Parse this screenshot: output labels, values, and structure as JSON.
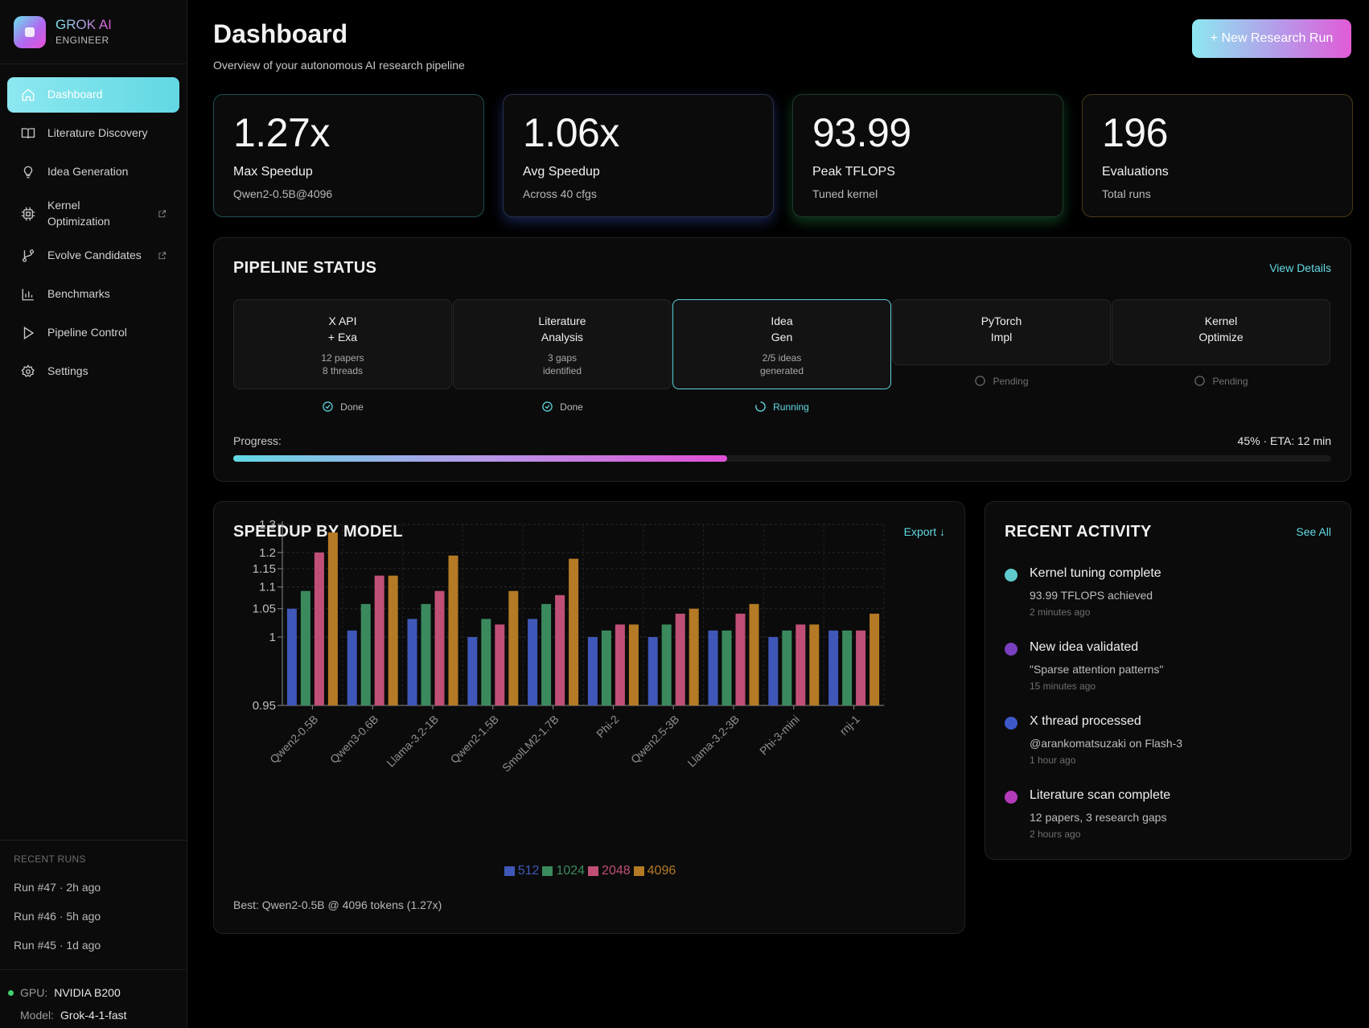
{
  "brand": {
    "title": "GROK AI",
    "subtitle": "ENGINEER"
  },
  "nav": [
    {
      "label": "Dashboard",
      "icon": "home-icon",
      "active": true
    },
    {
      "label": "Literature Discovery",
      "icon": "book-icon"
    },
    {
      "label": "Idea Generation",
      "icon": "lightbulb-icon"
    },
    {
      "label": "Kernel Optimization",
      "icon": "chip-icon",
      "external": true
    },
    {
      "label": "Evolve Candidates",
      "icon": "git-branch-icon",
      "external": true
    },
    {
      "label": "Benchmarks",
      "icon": "bar-chart-icon"
    },
    {
      "label": "Pipeline Control",
      "icon": "play-icon"
    },
    {
      "label": "Settings",
      "icon": "gear-icon"
    }
  ],
  "recent_runs": {
    "heading": "RECENT RUNS",
    "items": [
      "Run #47 · 2h ago",
      "Run #46 · 5h ago",
      "Run #45 · 1d ago"
    ]
  },
  "system": {
    "gpu_key": "GPU:",
    "gpu_val": "NVIDIA B200",
    "model_key": "Model:",
    "model_val": "Grok-4-1-fast"
  },
  "header": {
    "title": "Dashboard",
    "subtitle": "Overview of your autonomous AI research pipeline",
    "new_run_label": "+ New Research Run"
  },
  "stats": [
    {
      "value": "1.27x",
      "label": "Max Speedup",
      "desc": "Qwen2-0.5B@4096"
    },
    {
      "value": "1.06x",
      "label": "Avg Speedup",
      "desc": "Across 40 cfgs"
    },
    {
      "value": "93.99",
      "label": "Peak TFLOPS",
      "desc": "Tuned kernel"
    },
    {
      "value": "196",
      "label": "Evaluations",
      "desc": "Total runs"
    }
  ],
  "pipeline": {
    "title": "PIPELINE STATUS",
    "link": "View Details",
    "stages": [
      {
        "name1": "X API",
        "name2": "+ Exa",
        "meta1": "12 papers",
        "meta2": "8 threads",
        "status": "Done"
      },
      {
        "name1": "Literature",
        "name2": "Analysis",
        "meta1": "3 gaps",
        "meta2": "identified",
        "status": "Done"
      },
      {
        "name1": "Idea",
        "name2": "Gen",
        "meta1": "2/5 ideas",
        "meta2": "generated",
        "status": "Running"
      },
      {
        "name1": "PyTorch",
        "name2": "Impl",
        "meta1": "",
        "meta2": "",
        "status": "Pending"
      },
      {
        "name1": "Kernel",
        "name2": "Optimize",
        "meta1": "",
        "meta2": "",
        "status": "Pending"
      }
    ],
    "progress_label": "Progress:",
    "progress_text": "45% · ETA: 12 min",
    "progress_fraction": 0.45
  },
  "speedup": {
    "title": "SPEEDUP BY MODEL",
    "link": "Export ↓",
    "best_text": "Best: Qwen2-0.5B @ 4096 tokens (1.27x)"
  },
  "chart_data": {
    "type": "bar",
    "categories": [
      "Qwen2-0.5B",
      "Qwen3-0.6B",
      "Llama-3.2-1B",
      "Qwen2-1.5B",
      "SmolLM2-1.7B",
      "Phi-2",
      "Qwen2.5-3B",
      "Llama-3.2-3B",
      "Phi-3-mini",
      "rnj-1"
    ],
    "series": [
      {
        "name": "512",
        "color": "#3f57b8",
        "values": [
          1.05,
          1.01,
          1.03,
          1.0,
          1.03,
          1.0,
          1.0,
          1.01,
          1.0,
          1.01
        ]
      },
      {
        "name": "1024",
        "color": "#3a8a5e",
        "values": [
          1.09,
          1.06,
          1.06,
          1.03,
          1.06,
          1.01,
          1.02,
          1.01,
          1.01,
          1.01
        ]
      },
      {
        "name": "2048",
        "color": "#c04f78",
        "values": [
          1.2,
          1.13,
          1.09,
          1.02,
          1.08,
          1.02,
          1.04,
          1.04,
          1.02,
          1.01
        ]
      },
      {
        "name": "4096",
        "color": "#b57a25",
        "values": [
          1.27,
          1.13,
          1.19,
          1.09,
          1.18,
          1.02,
          1.05,
          1.06,
          1.02,
          1.04
        ]
      }
    ],
    "yticks": [
      "0.95",
      "1",
      "1.05",
      "1.1",
      "1.15",
      "1.2",
      "1.3"
    ],
    "ylim": [
      0.95,
      1.3
    ],
    "scale": "sqrt",
    "grid": true,
    "legend": "bottom"
  },
  "activity": {
    "title": "RECENT ACTIVITY",
    "link": "See All",
    "items": [
      {
        "title": "Kernel tuning complete",
        "desc": "93.99 TFLOPS achieved",
        "time": "2 minutes ago",
        "color": "#5fc9cc"
      },
      {
        "title": "New idea validated",
        "desc": "\"Sparse attention patterns\"",
        "time": "15 minutes ago",
        "color": "#7a3fbf"
      },
      {
        "title": "X thread processed",
        "desc": "@arankomatsuzaki on Flash-3",
        "time": "1 hour ago",
        "color": "#3f58c8"
      },
      {
        "title": "Literature scan complete",
        "desc": "12 papers, 3 research gaps",
        "time": "2 hours ago",
        "color": "#b33ab8"
      }
    ]
  }
}
